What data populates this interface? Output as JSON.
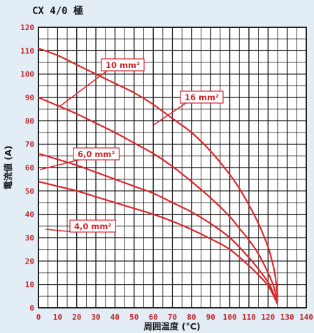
{
  "chart_data": {
    "type": "line",
    "title": "CX 4/0 極",
    "xlabel": "周囲温度 (°C)",
    "ylabel": "電流値 (A)",
    "xlim": [
      0,
      140
    ],
    "ylim": [
      0,
      120
    ],
    "x_ticks": [
      "0",
      "10",
      "20",
      "30",
      "40",
      "50",
      "60",
      "70",
      "80",
      "90",
      "100",
      "110",
      "120",
      "130",
      "140"
    ],
    "y_ticks": [
      "0",
      "10",
      "20",
      "30",
      "40",
      "50",
      "60",
      "70",
      "80",
      "90",
      "100",
      "110",
      "120"
    ],
    "grid": true,
    "colors": {
      "line": "#e0262c",
      "tick": "#c0272d",
      "grid": "#111111",
      "plot_bg": "#ffffff",
      "page_bg": "#e2edf6"
    },
    "series": [
      {
        "name": "16 mm²",
        "x": [
          0,
          10,
          20,
          30,
          40,
          50,
          60,
          70,
          80,
          90,
          100,
          105,
          110,
          115,
          120,
          123,
          124,
          125
        ],
        "y": [
          111,
          108,
          104,
          100,
          96,
          92,
          87,
          81,
          75,
          67,
          57,
          51,
          44,
          36,
          26,
          17,
          12,
          5
        ]
      },
      {
        "name": "10 mm²",
        "x": [
          0,
          10,
          20,
          30,
          40,
          50,
          60,
          70,
          80,
          90,
          100,
          105,
          110,
          115,
          120,
          123,
          125
        ],
        "y": [
          90,
          86.5,
          83,
          79,
          75,
          70.5,
          66,
          60.5,
          54,
          47,
          39,
          34,
          29,
          23,
          15,
          9,
          3
        ]
      },
      {
        "name": "6,0 mm²",
        "x": [
          0,
          10,
          20,
          30,
          40,
          50,
          60,
          70,
          80,
          90,
          100,
          110,
          115,
          120,
          123,
          125
        ],
        "y": [
          66,
          63.5,
          61,
          58,
          55,
          52,
          49,
          45,
          41,
          36,
          30,
          21.5,
          16.5,
          11,
          6,
          2
        ]
      },
      {
        "name": "4,0 mm²",
        "x": [
          0,
          10,
          20,
          30,
          40,
          50,
          60,
          70,
          80,
          90,
          100,
          110,
          115,
          120,
          123,
          125
        ],
        "y": [
          54,
          52,
          50,
          47.5,
          45,
          42.5,
          40,
          37,
          33.5,
          29.5,
          25,
          18,
          14,
          9.5,
          5,
          1.5
        ]
      }
    ]
  }
}
